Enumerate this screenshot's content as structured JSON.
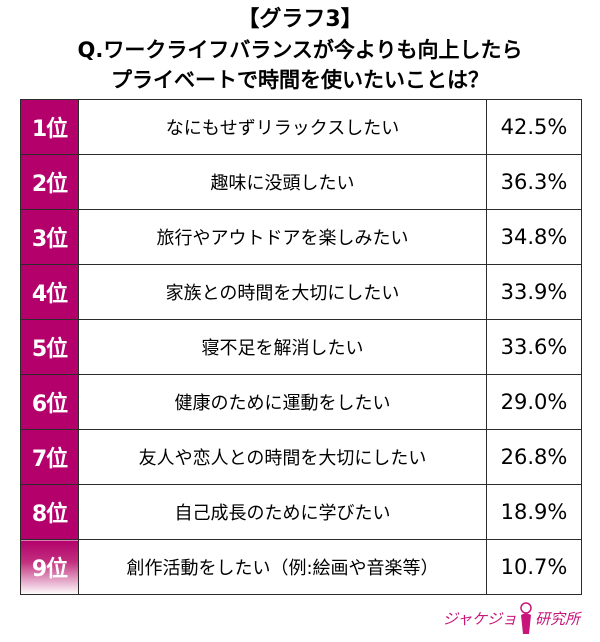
{
  "title": {
    "line1": "【グラフ3】",
    "line2": "Q.ワークライフバランスが今よりも向上したら",
    "line3": "プライベートで時間を使いたいことは？"
  },
  "chart_data": {
    "type": "table",
    "title": "【グラフ3】Q.ワークライフバランスが今よりも向上したらプライベートで時間を使いたいことは？",
    "unit": "%",
    "rows": [
      {
        "rank": "1位",
        "item": "なにもせずリラックスしたい",
        "value": 42.5,
        "value_label": "42.5%"
      },
      {
        "rank": "2位",
        "item": "趣味に没頭したい",
        "value": 36.3,
        "value_label": "36.3%"
      },
      {
        "rank": "3位",
        "item": "旅行やアウトドアを楽しみたい",
        "value": 34.8,
        "value_label": "34.8%"
      },
      {
        "rank": "4位",
        "item": "家族との時間を大切にしたい",
        "value": 33.9,
        "value_label": "33.9%"
      },
      {
        "rank": "5位",
        "item": "寝不足を解消したい",
        "value": 33.6,
        "value_label": "33.6%"
      },
      {
        "rank": "6位",
        "item": "健康のために運動をしたい",
        "value": 29.0,
        "value_label": "29.0%"
      },
      {
        "rank": "7位",
        "item": "友人や恋人との時間を大切にしたい",
        "value": 26.8,
        "value_label": "26.8%"
      },
      {
        "rank": "8位",
        "item": "自己成長のために学びたい",
        "value": 18.9,
        "value_label": "18.9%"
      },
      {
        "rank": "9位",
        "item": "創作活動をしたい（例:絵画や音楽等）",
        "value": 10.7,
        "value_label": "10.7%"
      }
    ]
  },
  "colors": {
    "rank_background": "#b3006b",
    "rank_text": "#ffffff",
    "border": "#2b2b2b",
    "logo": "#c7157a"
  },
  "logo": {
    "text_left": "ジャケジョ",
    "text_right": "研究所",
    "icon": "woman-profile-icon"
  }
}
